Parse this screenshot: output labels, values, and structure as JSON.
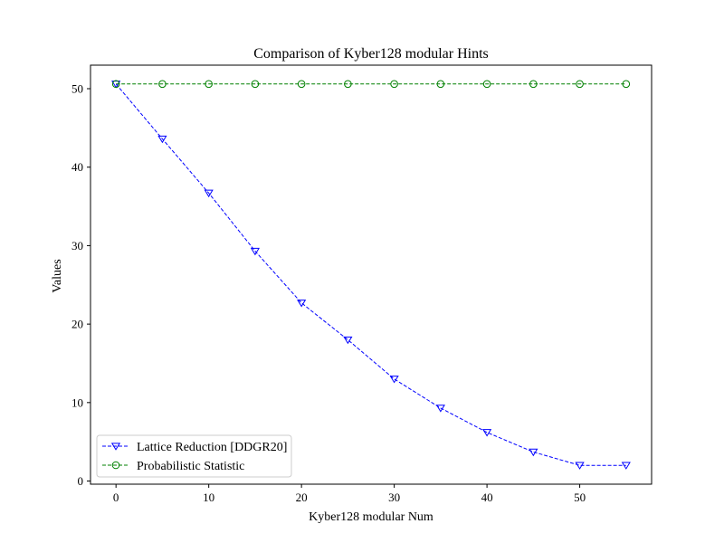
{
  "chart_data": {
    "type": "line",
    "title": "Comparison of Kyber128 modular Hints",
    "xlabel": "Kyber128 modular Num",
    "ylabel": "Values",
    "xlim": [
      -2.75,
      57.75
    ],
    "ylim": [
      -0.4,
      53.0
    ],
    "xticks": [
      0,
      10,
      20,
      30,
      40,
      50
    ],
    "yticks": [
      0,
      10,
      20,
      30,
      40,
      50
    ],
    "grid": false,
    "legend_position": "lower-left",
    "x": [
      0,
      5,
      10,
      15,
      20,
      25,
      30,
      35,
      40,
      45,
      50,
      55
    ],
    "series": [
      {
        "name": "Lattice Reduction [DDGR20]",
        "color": "#0000ff",
        "marker": "triangle-down",
        "linestyle": "dashed",
        "values": [
          50.6,
          43.6,
          36.7,
          29.3,
          22.7,
          18.0,
          13.0,
          9.3,
          6.2,
          3.7,
          2.0,
          2.0
        ]
      },
      {
        "name": "Probabilistic Statistic",
        "color": "#008000",
        "marker": "circle",
        "linestyle": "dashed",
        "values": [
          50.6,
          50.6,
          50.6,
          50.6,
          50.6,
          50.6,
          50.6,
          50.6,
          50.6,
          50.6,
          50.6,
          50.6
        ]
      }
    ]
  }
}
